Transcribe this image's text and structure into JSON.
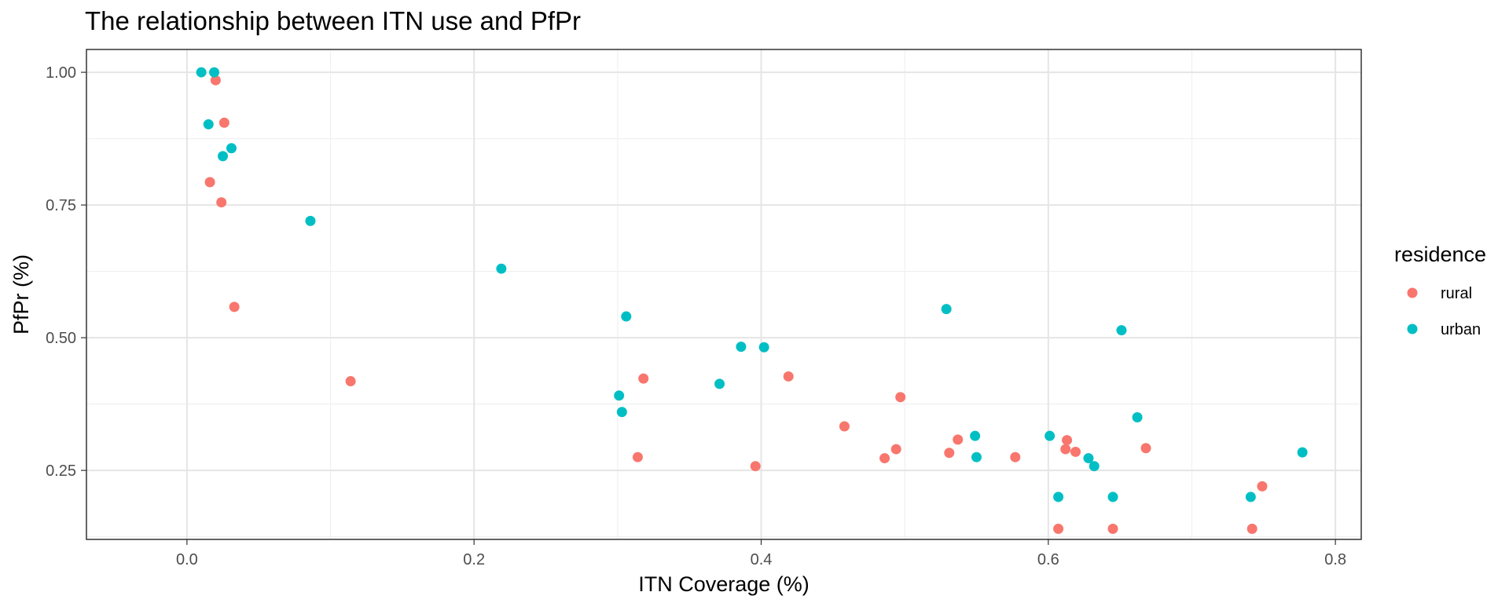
{
  "chart_data": {
    "type": "scatter",
    "title": "The relationship between ITN use and PfPr",
    "xlabel": "ITN Coverage (%)",
    "ylabel": "PfPr (%)",
    "xlim": [
      -0.07,
      0.818
    ],
    "ylim": [
      0.12,
      1.043
    ],
    "x_ticks": [
      0.0,
      0.2,
      0.4,
      0.6,
      0.8
    ],
    "x_tick_labels": [
      "0.0",
      "0.2",
      "0.4",
      "0.6",
      "0.8"
    ],
    "y_ticks": [
      0.25,
      0.5,
      0.75,
      1.0
    ],
    "y_tick_labels": [
      "0.25",
      "0.50",
      "0.75",
      "1.00"
    ],
    "grid": true,
    "legend": {
      "title": "residence",
      "position": "right"
    },
    "series": [
      {
        "name": "rural",
        "color": "#F8766D",
        "points": [
          [
            0.02,
            0.985
          ],
          [
            0.026,
            0.905
          ],
          [
            0.016,
            0.793
          ],
          [
            0.024,
            0.755
          ],
          [
            0.033,
            0.558
          ],
          [
            0.114,
            0.418
          ],
          [
            0.318,
            0.423
          ],
          [
            0.314,
            0.275
          ],
          [
            0.396,
            0.258
          ],
          [
            0.419,
            0.427
          ],
          [
            0.458,
            0.333
          ],
          [
            0.486,
            0.273
          ],
          [
            0.494,
            0.29
          ],
          [
            0.497,
            0.388
          ],
          [
            0.531,
            0.283
          ],
          [
            0.537,
            0.308
          ],
          [
            0.577,
            0.275
          ],
          [
            0.607,
            0.14
          ],
          [
            0.612,
            0.29
          ],
          [
            0.613,
            0.307
          ],
          [
            0.619,
            0.285
          ],
          [
            0.645,
            0.14
          ],
          [
            0.668,
            0.292
          ],
          [
            0.742,
            0.14
          ],
          [
            0.749,
            0.22
          ]
        ]
      },
      {
        "name": "urban",
        "color": "#00BFC4",
        "points": [
          [
            0.01,
            1.0
          ],
          [
            0.019,
            1.0
          ],
          [
            0.015,
            0.902
          ],
          [
            0.031,
            0.857
          ],
          [
            0.025,
            0.842
          ],
          [
            0.086,
            0.72
          ],
          [
            0.219,
            0.63
          ],
          [
            0.306,
            0.54
          ],
          [
            0.301,
            0.391
          ],
          [
            0.303,
            0.36
          ],
          [
            0.371,
            0.413
          ],
          [
            0.386,
            0.483
          ],
          [
            0.402,
            0.482
          ],
          [
            0.529,
            0.554
          ],
          [
            0.549,
            0.315
          ],
          [
            0.55,
            0.275
          ],
          [
            0.601,
            0.315
          ],
          [
            0.607,
            0.2
          ],
          [
            0.628,
            0.273
          ],
          [
            0.632,
            0.258
          ],
          [
            0.645,
            0.2
          ],
          [
            0.651,
            0.514
          ],
          [
            0.662,
            0.35
          ],
          [
            0.741,
            0.2
          ],
          [
            0.777,
            0.284
          ]
        ]
      }
    ]
  }
}
